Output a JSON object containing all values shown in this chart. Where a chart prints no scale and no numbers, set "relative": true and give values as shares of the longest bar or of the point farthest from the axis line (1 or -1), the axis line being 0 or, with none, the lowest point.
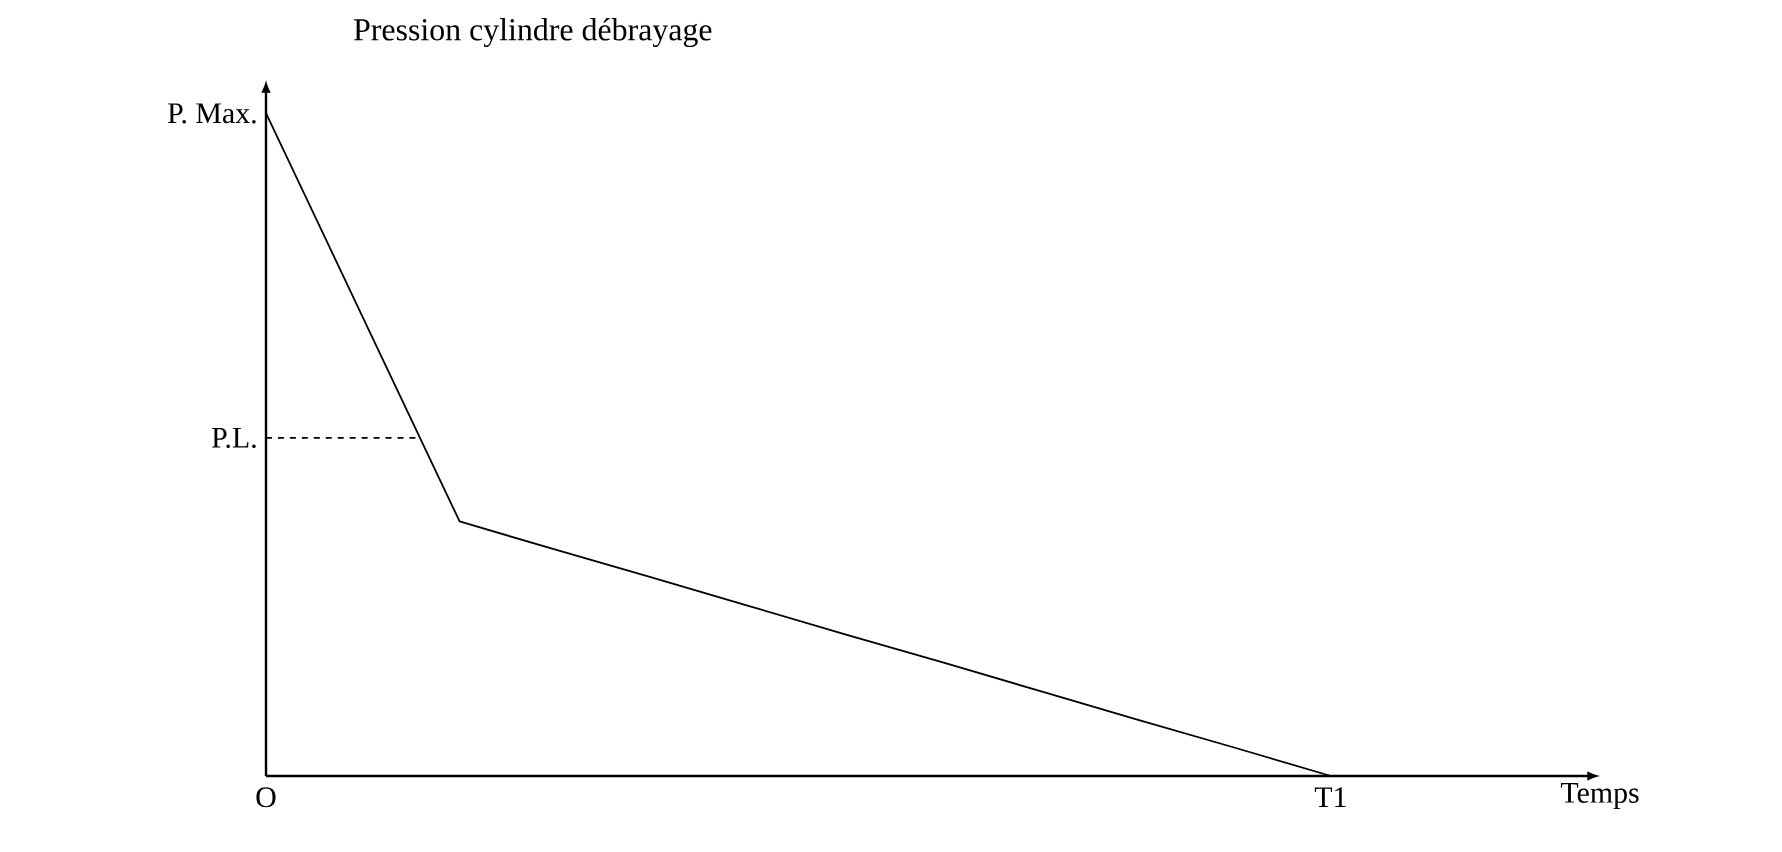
{
  "chart_data": {
    "type": "line",
    "title": "Pression cylindre débrayage",
    "xlabel": "Temps",
    "relative": true,
    "categories": [
      "O",
      null,
      null,
      null,
      null,
      null,
      null,
      null,
      null,
      null,
      null,
      "T1",
      null,
      null
    ],
    "grid": false,
    "marker": "none",
    "annotations": [
      "P. Max."
    ],
    "ref_lines": [
      {
        "axis": "y",
        "value": 0.51,
        "label": "P.L.",
        "color": "#000000",
        "line_style": "dashed"
      }
    ],
    "series": [
      {
        "color": "#000000",
        "values": [
          1,
          0.692,
          0.384,
          0.341,
          0.299,
          0.256,
          0.213,
          0.171,
          0.128,
          0.085,
          0.043,
          0,
          null,
          null
        ],
        "line_style": "solid"
      }
    ]
  }
}
